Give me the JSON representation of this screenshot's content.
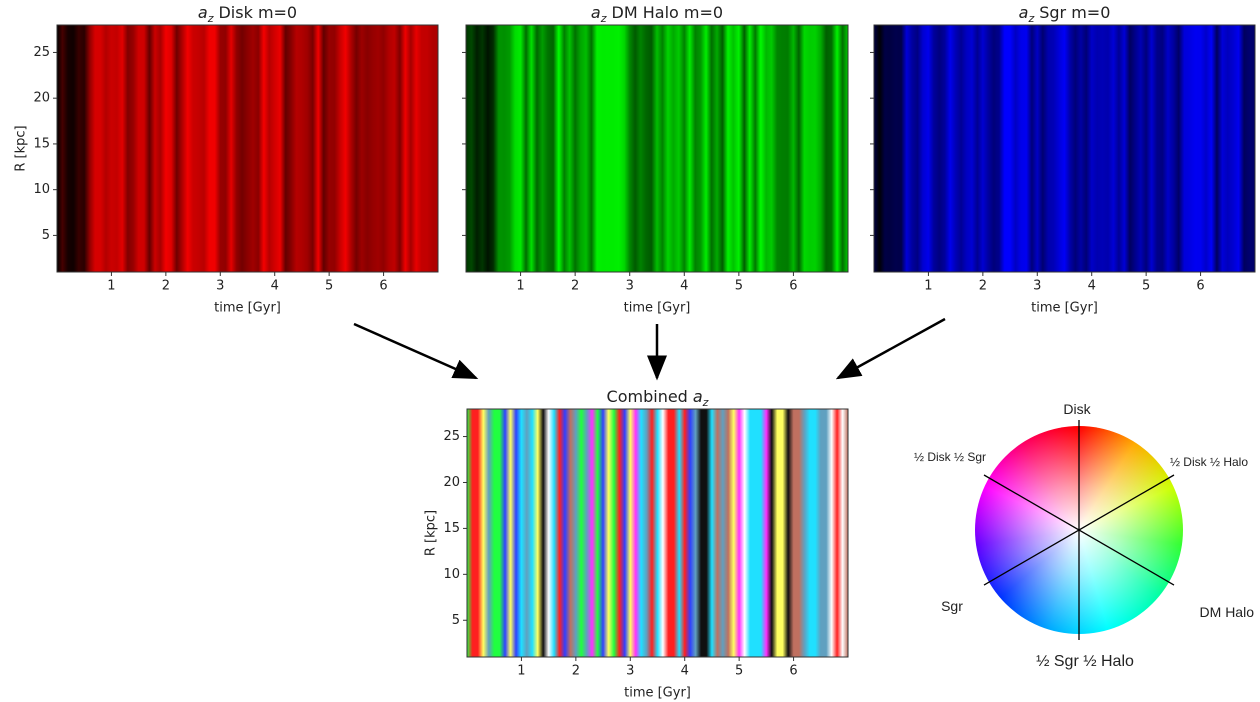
{
  "chart_data": [
    {
      "type": "heatmap",
      "title": {
        "symbol": "a",
        "subscript": "z",
        "text": "Disk m=0"
      },
      "xlabel": "time [Gyr]",
      "ylabel": "R [kpc]",
      "color": "#ff0000",
      "xlim": [
        0,
        7
      ],
      "ylim": [
        1,
        28
      ],
      "xticks": [
        1,
        2,
        3,
        4,
        5,
        6
      ],
      "yticks": [
        5,
        10,
        15,
        20,
        25
      ],
      "show_ytick_labels": true
    },
    {
      "type": "heatmap",
      "title": {
        "symbol": "a",
        "subscript": "z",
        "text": "DM Halo m=0"
      },
      "xlabel": "time [Gyr]",
      "color": "#00ff00",
      "xlim": [
        0,
        7
      ],
      "ylim": [
        1,
        28
      ],
      "xticks": [
        1,
        2,
        3,
        4,
        5,
        6
      ],
      "yticks": [
        5,
        10,
        15,
        20,
        25
      ],
      "show_ytick_labels": false
    },
    {
      "type": "heatmap",
      "title": {
        "symbol": "a",
        "subscript": "z",
        "text": "Sgr m=0"
      },
      "xlabel": "time [Gyr]",
      "color": "#0000ff",
      "xlim": [
        0,
        7
      ],
      "ylim": [
        1,
        28
      ],
      "xticks": [
        1,
        2,
        3,
        4,
        5,
        6
      ],
      "yticks": [
        5,
        10,
        15,
        20,
        25
      ],
      "show_ytick_labels": false
    },
    {
      "type": "heatmap",
      "title": {
        "prefix": "Combined",
        "symbol": "a",
        "subscript": "z"
      },
      "xlabel": "time [Gyr]",
      "ylabel": "R [kpc]",
      "color": "combined",
      "xlim": [
        0,
        7
      ],
      "ylim": [
        1,
        28
      ],
      "xticks": [
        1,
        2,
        3,
        4,
        5,
        6
      ],
      "yticks": [
        5,
        10,
        15,
        20,
        25
      ],
      "show_ytick_labels": true
    }
  ],
  "color_wheel": {
    "labels": {
      "top": "Disk",
      "upper_right": "½ Disk ½ Halo",
      "lower_right": "DM Halo",
      "bottom": "½ Sgr ½ Halo",
      "lower_left": "Sgr",
      "upper_left": "½ Disk ½ Sgr"
    }
  }
}
